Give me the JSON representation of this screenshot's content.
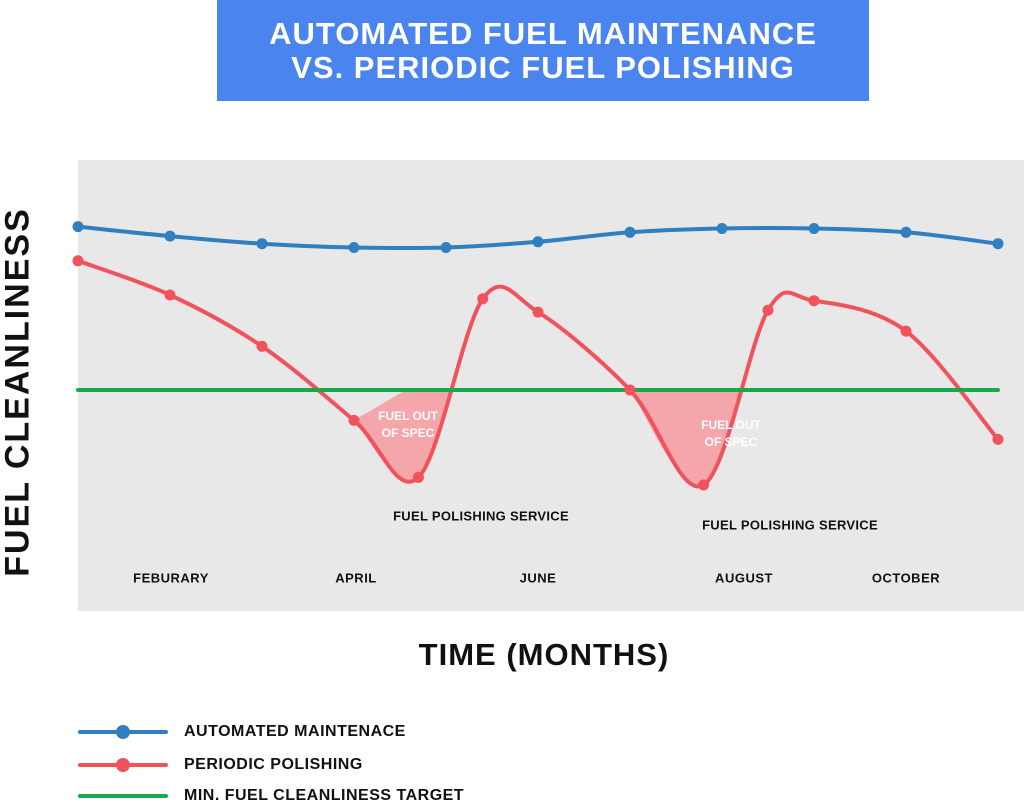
{
  "title": {
    "line1": "AUTOMATED FUEL MAINTENANCE",
    "line2": "VS. PERIODIC FUEL POLISHING"
  },
  "chart_data": {
    "type": "line",
    "xlabel": "TIME (MONTHS)",
    "ylabel": "FUEL CLEANLINESS",
    "categories": [
      "FEBURARY",
      "APRIL",
      "JUNE",
      "AUGUST",
      "OCTOBER"
    ],
    "grid": false,
    "legend_position": "bottom-left",
    "series": [
      {
        "name": "AUTOMATED MAINTENACE",
        "color": "#2f7fc1",
        "markers": true,
        "x": [
          1,
          2,
          3,
          4,
          5,
          6,
          7,
          8,
          9,
          10,
          11
        ],
        "y": [
          93,
          90.5,
          88.5,
          87.5,
          87.5,
          89,
          91.5,
          92.5,
          92.5,
          91.5,
          88.5
        ]
      },
      {
        "name": "PERIODIC POLISHING",
        "color": "#f0535c",
        "markers": true,
        "x": [
          1,
          2,
          3,
          4,
          4.7,
          5.4,
          6,
          7,
          7.8,
          8.5,
          9,
          10,
          11
        ],
        "y": [
          84,
          75,
          61.5,
          42,
          27,
          74,
          70.5,
          50,
          25,
          71,
          73.5,
          65.5,
          37
        ]
      },
      {
        "name": "MIN. FUEL CLEANLINESS TARGET",
        "color": "#19a94a",
        "markers": false,
        "x": [
          1,
          11
        ],
        "y": [
          50,
          50
        ]
      }
    ],
    "annotations": [
      {
        "text_line1": "FUEL OUT",
        "text_line2": "OF SPEC",
        "x": 4.6,
        "y": 41
      },
      {
        "text": "FUEL POLISHING SERVICE",
        "x": 5.4,
        "y": 20
      },
      {
        "text_line1": "FUEL OUT",
        "text_line2": "OF SPEC",
        "x": 8.2,
        "y": 39
      },
      {
        "text": "FUEL POLISHING SERVICE",
        "x": 8.8,
        "y": 18
      }
    ],
    "shaded_regions": [
      {
        "label": "FUEL OUT OF SPEC",
        "color": "#f4a6ab"
      },
      {
        "label": "FUEL OUT OF SPEC",
        "color": "#f4a6ab"
      }
    ]
  }
}
